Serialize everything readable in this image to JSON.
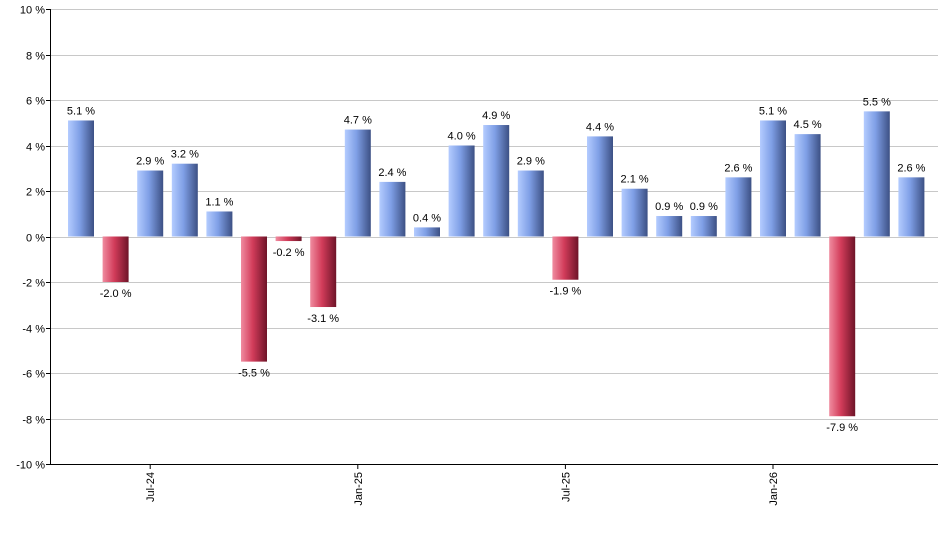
{
  "chart_data": {
    "type": "bar",
    "title": "",
    "xlabel": "",
    "ylabel": "",
    "ylim": [
      -10,
      10
    ],
    "y_ticks": [
      "-10 %",
      "-8 %",
      "-6 %",
      "-4 %",
      "-2 %",
      "0 %",
      "2 %",
      "4 %",
      "6 %",
      "8 %",
      "10 %"
    ],
    "y_tick_values": [
      -10,
      -8,
      -6,
      -4,
      -2,
      0,
      2,
      4,
      6,
      8,
      10
    ],
    "grid": true,
    "x_tick_labels": [
      {
        "label": "Jul-24",
        "index": 2
      },
      {
        "label": "Jan-25",
        "index": 8
      },
      {
        "label": "Jul-25",
        "index": 14
      },
      {
        "label": "Jan-26",
        "index": 20
      }
    ],
    "values": [
      5.1,
      -2.0,
      2.9,
      3.2,
      1.1,
      -5.5,
      -0.2,
      -3.1,
      4.7,
      2.4,
      0.4,
      4.0,
      4.9,
      2.9,
      -1.9,
      4.4,
      2.1,
      0.9,
      0.9,
      2.6,
      5.1,
      4.5,
      -7.9,
      5.5,
      2.6
    ],
    "data_labels": [
      "5.1 %",
      "-2.0 %",
      "2.9 %",
      "3.2 %",
      "1.1 %",
      "-5.5 %",
      "-0.2 %",
      "-3.1 %",
      "4.7 %",
      "2.4 %",
      "0.4 %",
      "4.0 %",
      "4.9 %",
      "2.9 %",
      "-1.9 %",
      "4.4 %",
      "2.1 %",
      "0.9 %",
      "0.9 %",
      "2.6 %",
      "5.1 %",
      "4.5 %",
      "-7.9 %",
      "5.5 %",
      "2.6 %"
    ],
    "colors": {
      "positive_light": "#b4ccff",
      "positive_mid": "#7f9fe6",
      "positive_dark": "#3c5084",
      "negative_light": "#f08ca0",
      "negative_mid": "#d23c5a",
      "negative_dark": "#6e1428",
      "grid": "#c8c8c8",
      "axis": "#000000"
    }
  }
}
